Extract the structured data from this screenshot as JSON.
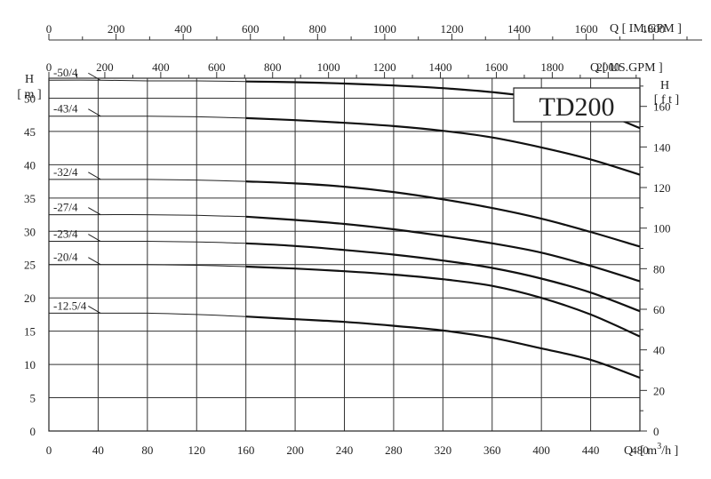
{
  "chart_data": {
    "type": "line",
    "title": "TD200",
    "xlabel": "Q [ m³/h ]",
    "xlabel_prefix": "Q",
    "xlabel_unit": "[ m",
    "xlabel_sup": "3",
    "xlabel_unit_end": "/h ]",
    "ylabel_left": "H",
    "ylabel_left_unit": "[ m ]",
    "ylabel_right": "H",
    "ylabel_right_unit": "[ f t ]",
    "top_axis_imgpm_label": "Q [ IM.GPM ]",
    "top_axis_usgpm_label": "Q [ US.GPM ]",
    "xlim": [
      0,
      480
    ],
    "ylim": [
      0,
      53
    ],
    "grid": true,
    "x_ticks": [
      "0",
      "40",
      "80",
      "120",
      "160",
      "200",
      "240",
      "280",
      "320",
      "360",
      "400",
      "440",
      "480"
    ],
    "y_ticks_left": [
      "0",
      "5",
      "10",
      "15",
      "20",
      "25",
      "30",
      "35",
      "40",
      "45",
      "50"
    ],
    "y_ticks_right": [
      "0",
      "20",
      "40",
      "60",
      "80",
      "100",
      "120",
      "140",
      "160"
    ],
    "imgpm_ticks": [
      "0",
      "200",
      "400",
      "600",
      "800",
      "1000",
      "1200",
      "1400",
      "1600",
      "1800"
    ],
    "usgpm_ticks": [
      "0",
      "200",
      "400",
      "600",
      "800",
      "1000",
      "1200",
      "1400",
      "1600",
      "1800",
      "2000"
    ],
    "x": [
      0,
      40,
      80,
      120,
      160,
      200,
      240,
      280,
      320,
      360,
      400,
      440,
      480
    ],
    "series": [
      {
        "name": "-50/4",
        "values": [
          52.7,
          52.7,
          52.6,
          52.6,
          52.5,
          52.4,
          52.2,
          51.9,
          51.5,
          50.9,
          50.0,
          48.4,
          45.5
        ]
      },
      {
        "name": "-43/4",
        "values": [
          47.3,
          47.3,
          47.3,
          47.2,
          47.0,
          46.7,
          46.3,
          45.8,
          45.1,
          44.1,
          42.6,
          40.8,
          38.5
        ]
      },
      {
        "name": "-32/4",
        "values": [
          37.8,
          37.8,
          37.8,
          37.7,
          37.5,
          37.2,
          36.7,
          35.9,
          34.8,
          33.5,
          31.9,
          29.9,
          27.7
        ]
      },
      {
        "name": "-27/4",
        "values": [
          32.5,
          32.5,
          32.5,
          32.4,
          32.2,
          31.7,
          31.1,
          30.3,
          29.3,
          28.2,
          26.8,
          24.8,
          22.5
        ]
      },
      {
        "name": "-23/4",
        "values": [
          28.5,
          28.5,
          28.5,
          28.4,
          28.2,
          27.8,
          27.2,
          26.5,
          25.6,
          24.5,
          22.9,
          20.8,
          18.0
        ]
      },
      {
        "name": "-20/4",
        "values": [
          25.0,
          25.0,
          25.0,
          24.9,
          24.7,
          24.4,
          24.0,
          23.5,
          22.8,
          21.8,
          20.0,
          17.5,
          14.2
        ]
      },
      {
        "name": "-12.5/4",
        "values": [
          17.7,
          17.7,
          17.7,
          17.5,
          17.2,
          16.8,
          16.4,
          15.8,
          15.1,
          14.0,
          12.4,
          10.7,
          8.0
        ]
      }
    ]
  }
}
